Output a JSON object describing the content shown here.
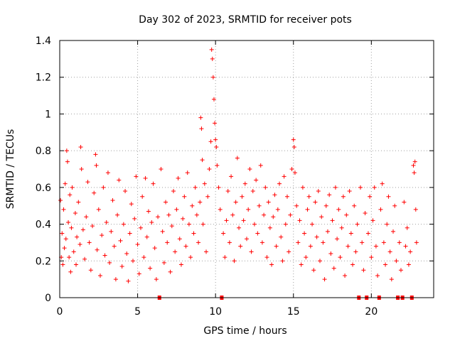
{
  "chart_data": {
    "type": "scatter",
    "title": "Day 302 of 2023, SRMTID for receiver pots",
    "xlabel": "GPS time / hours",
    "ylabel": "SRMTID / TECUs",
    "xlim": [
      0,
      24
    ],
    "ylim": [
      0,
      1.4
    ],
    "x_ticks": [
      0,
      5,
      10,
      15,
      20
    ],
    "x_tick_labels": [
      "0",
      "5",
      "10",
      "15",
      "20"
    ],
    "y_ticks": [
      0,
      0.2,
      0.4,
      0.6,
      0.8,
      1,
      1.2,
      1.4
    ],
    "y_tick_labels": [
      "0",
      "0.2",
      "0.4",
      "0.6",
      "0.8",
      "1",
      "1.2",
      "1.4"
    ],
    "grid": true,
    "marker": "plus",
    "series_color": "#ff0000",
    "zero_markers_x": [
      6.4,
      10.4,
      19.2,
      19.7,
      20.5,
      21.7,
      22.0,
      22.6
    ],
    "series": [
      {
        "name": "SRMTID",
        "points": [
          [
            0.05,
            0.53
          ],
          [
            0.1,
            0.22
          ],
          [
            0.15,
            0.35
          ],
          [
            0.2,
            0.18
          ],
          [
            0.25,
            0.48
          ],
          [
            0.3,
            0.27
          ],
          [
            0.35,
            0.62
          ],
          [
            0.4,
            0.32
          ],
          [
            0.45,
            0.8
          ],
          [
            0.5,
            0.74
          ],
          [
            0.55,
            0.41
          ],
          [
            0.6,
            0.22
          ],
          [
            0.65,
            0.56
          ],
          [
            0.7,
            0.14
          ],
          [
            0.75,
            0.38
          ],
          [
            0.8,
            0.6
          ],
          [
            0.9,
            0.25
          ],
          [
            1.0,
            0.46
          ],
          [
            1.05,
            0.18
          ],
          [
            1.1,
            0.33
          ],
          [
            1.2,
            0.52
          ],
          [
            1.3,
            0.29
          ],
          [
            1.35,
            0.82
          ],
          [
            1.4,
            0.7
          ],
          [
            1.5,
            0.37
          ],
          [
            1.6,
            0.21
          ],
          [
            1.7,
            0.44
          ],
          [
            1.8,
            0.63
          ],
          [
            1.9,
            0.3
          ],
          [
            2.0,
            0.15
          ],
          [
            2.1,
            0.39
          ],
          [
            2.2,
            0.57
          ],
          [
            2.3,
            0.78
          ],
          [
            2.35,
            0.72
          ],
          [
            2.4,
            0.26
          ],
          [
            2.5,
            0.48
          ],
          [
            2.6,
            0.12
          ],
          [
            2.7,
            0.34
          ],
          [
            2.8,
            0.6
          ],
          [
            2.9,
            0.23
          ],
          [
            3.0,
            0.41
          ],
          [
            3.1,
            0.68
          ],
          [
            3.2,
            0.19
          ],
          [
            3.3,
            0.36
          ],
          [
            3.4,
            0.53
          ],
          [
            3.5,
            0.28
          ],
          [
            3.6,
            0.1
          ],
          [
            3.7,
            0.45
          ],
          [
            3.8,
            0.64
          ],
          [
            3.9,
            0.31
          ],
          [
            4.0,
            0.17
          ],
          [
            4.1,
            0.4
          ],
          [
            4.2,
            0.58
          ],
          [
            4.3,
            0.24
          ],
          [
            4.4,
            0.09
          ],
          [
            4.5,
            0.35
          ],
          [
            4.6,
            0.51
          ],
          [
            4.7,
            0.2
          ],
          [
            4.8,
            0.43
          ],
          [
            4.9,
            0.66
          ],
          [
            5.0,
            0.29
          ],
          [
            5.1,
            0.13
          ],
          [
            5.2,
            0.38
          ],
          [
            5.3,
            0.55
          ],
          [
            5.4,
            0.22
          ],
          [
            5.5,
            0.65
          ],
          [
            5.6,
            0.33
          ],
          [
            5.7,
            0.47
          ],
          [
            5.8,
            0.16
          ],
          [
            5.9,
            0.41
          ],
          [
            6.0,
            0.62
          ],
          [
            6.1,
            0.27
          ],
          [
            6.2,
            0.1
          ],
          [
            6.3,
            0.44
          ],
          [
            6.5,
            0.7
          ],
          [
            6.6,
            0.36
          ],
          [
            6.7,
            0.19
          ],
          [
            6.8,
            0.52
          ],
          [
            6.9,
            0.3
          ],
          [
            7.0,
            0.45
          ],
          [
            7.1,
            0.14
          ],
          [
            7.2,
            0.39
          ],
          [
            7.3,
            0.58
          ],
          [
            7.4,
            0.25
          ],
          [
            7.5,
            0.48
          ],
          [
            7.6,
            0.65
          ],
          [
            7.7,
            0.32
          ],
          [
            7.8,
            0.18
          ],
          [
            7.9,
            0.43
          ],
          [
            8.0,
            0.55
          ],
          [
            8.1,
            0.28
          ],
          [
            8.2,
            0.68
          ],
          [
            8.3,
            0.4
          ],
          [
            8.4,
            0.22
          ],
          [
            8.5,
            0.5
          ],
          [
            8.6,
            0.35
          ],
          [
            8.7,
            0.6
          ],
          [
            8.8,
            0.45
          ],
          [
            8.9,
            0.3
          ],
          [
            9.0,
            0.52
          ],
          [
            9.05,
            0.98
          ],
          [
            9.1,
            0.92
          ],
          [
            9.15,
            0.75
          ],
          [
            9.2,
            0.4
          ],
          [
            9.3,
            0.62
          ],
          [
            9.4,
            0.25
          ],
          [
            9.5,
            0.55
          ],
          [
            9.6,
            0.7
          ],
          [
            9.7,
            0.85
          ],
          [
            9.75,
            1.35
          ],
          [
            9.8,
            1.3
          ],
          [
            9.85,
            1.2
          ],
          [
            9.9,
            1.08
          ],
          [
            9.95,
            0.95
          ],
          [
            10.0,
            0.86
          ],
          [
            10.05,
            0.82
          ],
          [
            10.1,
            0.72
          ],
          [
            10.2,
            0.6
          ],
          [
            10.3,
            0.48
          ],
          [
            10.5,
            0.35
          ],
          [
            10.6,
            0.22
          ],
          [
            10.7,
            0.42
          ],
          [
            10.8,
            0.58
          ],
          [
            10.9,
            0.3
          ],
          [
            11.0,
            0.66
          ],
          [
            11.1,
            0.45
          ],
          [
            11.2,
            0.2
          ],
          [
            11.3,
            0.52
          ],
          [
            11.4,
            0.76
          ],
          [
            11.5,
            0.38
          ],
          [
            11.6,
            0.28
          ],
          [
            11.7,
            0.55
          ],
          [
            11.8,
            0.42
          ],
          [
            11.9,
            0.62
          ],
          [
            12.0,
            0.32
          ],
          [
            12.1,
            0.48
          ],
          [
            12.2,
            0.7
          ],
          [
            12.3,
            0.25
          ],
          [
            12.4,
            0.58
          ],
          [
            12.5,
            0.4
          ],
          [
            12.6,
            0.64
          ],
          [
            12.7,
            0.35
          ],
          [
            12.8,
            0.5
          ],
          [
            12.9,
            0.72
          ],
          [
            13.0,
            0.3
          ],
          [
            13.1,
            0.45
          ],
          [
            13.2,
            0.6
          ],
          [
            13.3,
            0.22
          ],
          [
            13.4,
            0.52
          ],
          [
            13.5,
            0.38
          ],
          [
            13.6,
            0.18
          ],
          [
            13.7,
            0.44
          ],
          [
            13.8,
            0.56
          ],
          [
            13.9,
            0.28
          ],
          [
            14.0,
            0.48
          ],
          [
            14.1,
            0.62
          ],
          [
            14.2,
            0.33
          ],
          [
            14.3,
            0.2
          ],
          [
            14.4,
            0.66
          ],
          [
            14.5,
            0.4
          ],
          [
            14.6,
            0.55
          ],
          [
            14.7,
            0.25
          ],
          [
            14.8,
            0.45
          ],
          [
            14.9,
            0.7
          ],
          [
            15.0,
            0.86
          ],
          [
            15.05,
            0.82
          ],
          [
            15.1,
            0.68
          ],
          [
            15.2,
            0.5
          ],
          [
            15.3,
            0.3
          ],
          [
            15.4,
            0.42
          ],
          [
            15.5,
            0.18
          ],
          [
            15.6,
            0.6
          ],
          [
            15.7,
            0.35
          ],
          [
            15.8,
            0.22
          ],
          [
            15.9,
            0.48
          ],
          [
            16.0,
            0.55
          ],
          [
            16.1,
            0.28
          ],
          [
            16.2,
            0.4
          ],
          [
            16.3,
            0.15
          ],
          [
            16.4,
            0.52
          ],
          [
            16.5,
            0.33
          ],
          [
            16.6,
            0.58
          ],
          [
            16.7,
            0.2
          ],
          [
            16.8,
            0.44
          ],
          [
            16.9,
            0.3
          ],
          [
            17.0,
            0.1
          ],
          [
            17.1,
            0.5
          ],
          [
            17.2,
            0.36
          ],
          [
            17.3,
            0.56
          ],
          [
            17.4,
            0.24
          ],
          [
            17.5,
            0.42
          ],
          [
            17.6,
            0.16
          ],
          [
            17.7,
            0.6
          ],
          [
            17.8,
            0.32
          ],
          [
            17.9,
            0.48
          ],
          [
            18.0,
            0.22
          ],
          [
            18.1,
            0.38
          ],
          [
            18.2,
            0.55
          ],
          [
            18.3,
            0.12
          ],
          [
            18.4,
            0.45
          ],
          [
            18.5,
            0.28
          ],
          [
            18.6,
            0.58
          ],
          [
            18.7,
            0.35
          ],
          [
            18.8,
            0.18
          ],
          [
            18.9,
            0.5
          ],
          [
            19.0,
            0.25
          ],
          [
            19.1,
            0.4
          ],
          [
            19.3,
            0.6
          ],
          [
            19.4,
            0.3
          ],
          [
            19.5,
            0.15
          ],
          [
            19.6,
            0.46
          ],
          [
            19.8,
            0.35
          ],
          [
            19.9,
            0.55
          ],
          [
            20.0,
            0.22
          ],
          [
            20.1,
            0.42
          ],
          [
            20.2,
            0.6
          ],
          [
            20.3,
            0.28
          ],
          [
            20.4,
            0.12
          ],
          [
            20.6,
            0.48
          ],
          [
            20.7,
            0.62
          ],
          [
            20.8,
            0.3
          ],
          [
            20.9,
            0.18
          ],
          [
            21.0,
            0.4
          ],
          [
            21.1,
            0.55
          ],
          [
            21.2,
            0.25
          ],
          [
            21.3,
            0.1
          ],
          [
            21.4,
            0.36
          ],
          [
            21.5,
            0.5
          ],
          [
            21.6,
            0.2
          ],
          [
            21.8,
            0.3
          ],
          [
            21.9,
            0.15
          ],
          [
            22.1,
            0.52
          ],
          [
            22.2,
            0.28
          ],
          [
            22.3,
            0.38
          ],
          [
            22.4,
            0.18
          ],
          [
            22.5,
            0.25
          ],
          [
            22.7,
            0.72
          ],
          [
            22.75,
            0.68
          ],
          [
            22.8,
            0.74
          ],
          [
            22.85,
            0.48
          ],
          [
            22.9,
            0.3
          ]
        ]
      }
    ]
  }
}
